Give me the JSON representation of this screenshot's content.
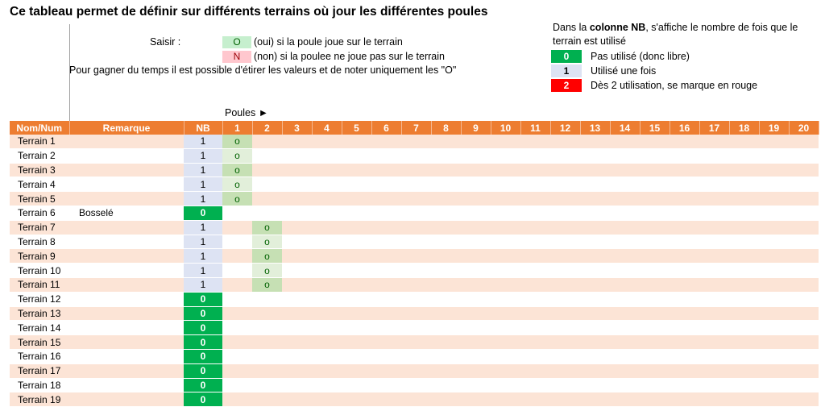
{
  "title": "Ce tableau permet de définir sur différents terrains où jour les différentes poules",
  "instructions": {
    "saisir_label": "Saisir :",
    "legend": [
      {
        "symbol": "O",
        "text": "(oui) si la poule joue sur le terrain",
        "color": "#c6efce",
        "text_color": "#006100"
      },
      {
        "symbol": "N",
        "text": "(non) si la poulee ne joue pas sur le terrain",
        "color": "#ffc7ce",
        "text_color": "#9c0006"
      }
    ],
    "note": "Pour gagner du temps il est possible d'étirer les valeurs et de noter uniquement les \"O\""
  },
  "nb_legend": {
    "intro_prefix": "Dans la ",
    "intro_bold": "colonne NB",
    "intro_suffix": ", s'affiche le nombre de fois que le terrain est utilisé",
    "items": [
      {
        "value": "0",
        "text": "Pas utilisé (donc libre)",
        "color": "#00b050",
        "text_color": "#ffffff"
      },
      {
        "value": "1",
        "text": "Utilisé une fois",
        "color": "#dde3f3",
        "text_color": "#000000"
      },
      {
        "value": "2",
        "text": "Dès 2 utilisation, se marque en rouge",
        "color": "#ff0000",
        "text_color": "#ffffff"
      }
    ]
  },
  "poules_label": "Poules ►",
  "table": {
    "columns": {
      "name": "Nom/Num",
      "remark": "Remarque",
      "nb": "NB"
    },
    "poules": [
      "1",
      "2",
      "3",
      "4",
      "5",
      "6",
      "7",
      "8",
      "9",
      "10",
      "11",
      "12",
      "13",
      "14",
      "15",
      "16",
      "17",
      "18",
      "19",
      "20"
    ],
    "rows": [
      {
        "name": "Terrain 1",
        "remark": "",
        "nb": "1",
        "marks": {
          "1": "o"
        }
      },
      {
        "name": "Terrain 2",
        "remark": "",
        "nb": "1",
        "marks": {
          "1": "o"
        }
      },
      {
        "name": "Terrain 3",
        "remark": "",
        "nb": "1",
        "marks": {
          "1": "o"
        }
      },
      {
        "name": "Terrain 4",
        "remark": "",
        "nb": "1",
        "marks": {
          "1": "o"
        }
      },
      {
        "name": "Terrain 5",
        "remark": "",
        "nb": "1",
        "marks": {
          "1": "o"
        }
      },
      {
        "name": "Terrain 6",
        "remark": "Bosselé",
        "nb": "0",
        "marks": {}
      },
      {
        "name": "Terrain 7",
        "remark": "",
        "nb": "1",
        "marks": {
          "2": "o"
        }
      },
      {
        "name": "Terrain 8",
        "remark": "",
        "nb": "1",
        "marks": {
          "2": "o"
        }
      },
      {
        "name": "Terrain 9",
        "remark": "",
        "nb": "1",
        "marks": {
          "2": "o"
        }
      },
      {
        "name": "Terrain 10",
        "remark": "",
        "nb": "1",
        "marks": {
          "2": "o"
        }
      },
      {
        "name": "Terrain 11",
        "remark": "",
        "nb": "1",
        "marks": {
          "2": "o"
        }
      },
      {
        "name": "Terrain 12",
        "remark": "",
        "nb": "0",
        "marks": {}
      },
      {
        "name": "Terrain 13",
        "remark": "",
        "nb": "0",
        "marks": {}
      },
      {
        "name": "Terrain 14",
        "remark": "",
        "nb": "0",
        "marks": {}
      },
      {
        "name": "Terrain 15",
        "remark": "",
        "nb": "0",
        "marks": {}
      },
      {
        "name": "Terrain 16",
        "remark": "",
        "nb": "0",
        "marks": {}
      },
      {
        "name": "Terrain 17",
        "remark": "",
        "nb": "0",
        "marks": {}
      },
      {
        "name": "Terrain 18",
        "remark": "",
        "nb": "0",
        "marks": {}
      },
      {
        "name": "Terrain 19",
        "remark": "",
        "nb": "0",
        "marks": {}
      }
    ]
  },
  "colors": {
    "header": "#ed7d31",
    "band": "#fce4d6",
    "mark_fill": "#c6e0b4"
  }
}
